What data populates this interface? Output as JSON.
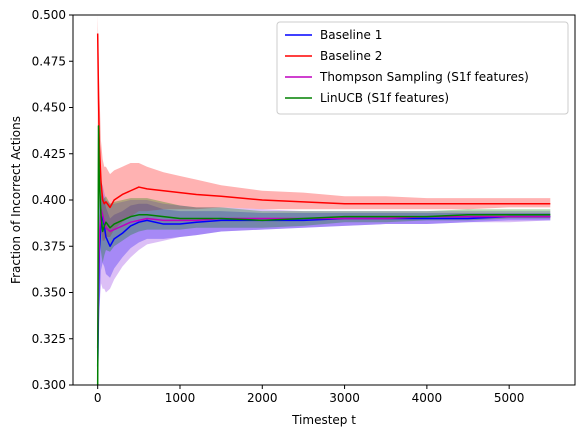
{
  "chart_data": {
    "type": "line",
    "xlabel": "Timestep t",
    "ylabel": "Fraction of Incorrect Actions",
    "xlim": [
      -300,
      5800
    ],
    "ylim": [
      0.3,
      0.5
    ],
    "xticks": [
      0,
      1000,
      2000,
      3000,
      4000,
      5000
    ],
    "xtick_labels": [
      "0",
      "1000",
      "2000",
      "3000",
      "4000",
      "5000"
    ],
    "yticks": [
      0.3,
      0.325,
      0.35,
      0.375,
      0.4,
      0.425,
      0.45,
      0.475,
      0.5
    ],
    "ytick_labels": [
      "0.300",
      "0.325",
      "0.350",
      "0.375",
      "0.400",
      "0.425",
      "0.450",
      "0.475",
      "0.500"
    ],
    "grid": false,
    "legend_position": "top-right",
    "series": [
      {
        "name": "Baseline 1",
        "color": "#0000ff",
        "band_color": "#0000ff",
        "x": [
          0,
          10,
          20,
          40,
          60,
          80,
          100,
          150,
          200,
          300,
          400,
          500,
          600,
          800,
          1000,
          1200,
          1500,
          2000,
          2500,
          3000,
          3500,
          4000,
          4500,
          5000,
          5500
        ],
        "y": [
          0.31,
          0.345,
          0.372,
          0.388,
          0.391,
          0.386,
          0.38,
          0.375,
          0.379,
          0.382,
          0.386,
          0.388,
          0.389,
          0.387,
          0.387,
          0.388,
          0.389,
          0.389,
          0.389,
          0.39,
          0.39,
          0.39,
          0.39,
          0.391,
          0.391
        ],
        "upper": [
          0.36,
          0.39,
          0.4,
          0.402,
          0.404,
          0.401,
          0.396,
          0.39,
          0.392,
          0.394,
          0.397,
          0.398,
          0.398,
          0.395,
          0.394,
          0.394,
          0.394,
          0.393,
          0.393,
          0.393,
          0.393,
          0.393,
          0.393,
          0.393,
          0.393
        ],
        "lower": [
          0.28,
          0.31,
          0.34,
          0.362,
          0.366,
          0.364,
          0.36,
          0.358,
          0.363,
          0.369,
          0.374,
          0.377,
          0.379,
          0.379,
          0.38,
          0.381,
          0.383,
          0.384,
          0.385,
          0.386,
          0.387,
          0.387,
          0.388,
          0.389,
          0.389
        ]
      },
      {
        "name": "Baseline 2",
        "color": "#ff0000",
        "band_color": "#ff0000",
        "x": [
          0,
          10,
          20,
          40,
          60,
          80,
          100,
          150,
          200,
          300,
          400,
          500,
          600,
          800,
          1000,
          1200,
          1500,
          2000,
          2500,
          3000,
          3500,
          4000,
          4500,
          5000,
          5500
        ],
        "y": [
          0.49,
          0.455,
          0.43,
          0.41,
          0.4,
          0.398,
          0.399,
          0.396,
          0.4,
          0.403,
          0.405,
          0.407,
          0.406,
          0.405,
          0.404,
          0.403,
          0.402,
          0.4,
          0.399,
          0.398,
          0.398,
          0.398,
          0.398,
          0.398,
          0.398
        ],
        "upper": [
          0.5,
          0.48,
          0.46,
          0.432,
          0.422,
          0.418,
          0.418,
          0.414,
          0.416,
          0.418,
          0.42,
          0.42,
          0.418,
          0.415,
          0.413,
          0.411,
          0.408,
          0.405,
          0.404,
          0.402,
          0.402,
          0.401,
          0.401,
          0.401,
          0.401
        ],
        "lower": [
          0.44,
          0.43,
          0.4,
          0.385,
          0.378,
          0.378,
          0.38,
          0.38,
          0.384,
          0.388,
          0.391,
          0.394,
          0.394,
          0.395,
          0.395,
          0.395,
          0.396,
          0.395,
          0.395,
          0.395,
          0.395,
          0.395,
          0.395,
          0.396,
          0.396
        ]
      },
      {
        "name": "Thompson Sampling (S1f features)",
        "color": "#bf00bf",
        "band_color": "#8a2be2",
        "x": [
          0,
          10,
          20,
          40,
          60,
          80,
          100,
          150,
          200,
          300,
          400,
          500,
          600,
          800,
          1000,
          1200,
          1500,
          2000,
          2500,
          3000,
          3500,
          4000,
          4500,
          5000,
          5500
        ],
        "y": [
          0.32,
          0.36,
          0.38,
          0.395,
          0.392,
          0.388,
          0.385,
          0.383,
          0.384,
          0.386,
          0.388,
          0.389,
          0.39,
          0.389,
          0.389,
          0.389,
          0.39,
          0.39,
          0.39,
          0.39,
          0.39,
          0.391,
          0.391,
          0.391,
          0.391
        ],
        "upper": [
          0.38,
          0.4,
          0.41,
          0.41,
          0.408,
          0.404,
          0.4,
          0.398,
          0.398,
          0.399,
          0.4,
          0.4,
          0.4,
          0.398,
          0.397,
          0.396,
          0.396,
          0.395,
          0.394,
          0.394,
          0.394,
          0.394,
          0.394,
          0.394,
          0.394
        ],
        "lower": [
          0.29,
          0.31,
          0.34,
          0.355,
          0.352,
          0.352,
          0.35,
          0.352,
          0.357,
          0.364,
          0.369,
          0.373,
          0.376,
          0.378,
          0.38,
          0.381,
          0.383,
          0.384,
          0.385,
          0.386,
          0.387,
          0.387,
          0.388,
          0.388,
          0.389
        ]
      },
      {
        "name": "LinUCB (S1f features)",
        "color": "#008000",
        "band_color": "#008000",
        "x": [
          0,
          10,
          20,
          40,
          60,
          80,
          100,
          150,
          200,
          300,
          400,
          500,
          600,
          800,
          1000,
          1200,
          1500,
          2000,
          2500,
          3000,
          3500,
          4000,
          4500,
          5000,
          5500
        ],
        "y": [
          0.3,
          0.44,
          0.41,
          0.392,
          0.383,
          0.386,
          0.388,
          0.385,
          0.387,
          0.389,
          0.391,
          0.392,
          0.392,
          0.391,
          0.39,
          0.39,
          0.39,
          0.389,
          0.39,
          0.391,
          0.391,
          0.391,
          0.392,
          0.392,
          0.392
        ],
        "upper": [
          0.34,
          0.46,
          0.43,
          0.41,
          0.4,
          0.401,
          0.402,
          0.398,
          0.399,
          0.4,
          0.401,
          0.401,
          0.401,
          0.399,
          0.397,
          0.396,
          0.396,
          0.394,
          0.394,
          0.394,
          0.394,
          0.394,
          0.395,
          0.395,
          0.395
        ],
        "lower": [
          0.28,
          0.4,
          0.385,
          0.372,
          0.366,
          0.37,
          0.373,
          0.372,
          0.375,
          0.378,
          0.381,
          0.383,
          0.384,
          0.384,
          0.384,
          0.385,
          0.385,
          0.385,
          0.386,
          0.388,
          0.388,
          0.389,
          0.389,
          0.39,
          0.39
        ]
      }
    ]
  }
}
